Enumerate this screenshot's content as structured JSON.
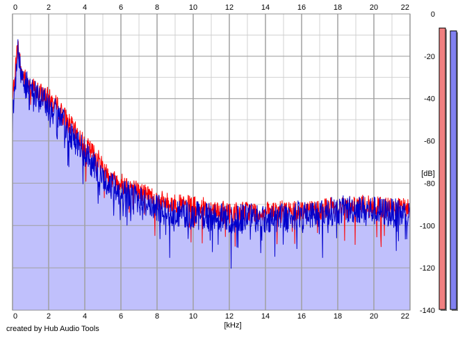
{
  "chart_data": {
    "type": "area",
    "title": "",
    "xlabel": "[kHz]",
    "ylabel": "[dB]",
    "xlim": [
      0,
      22
    ],
    "ylim": [
      -140,
      0
    ],
    "x_ticks": [
      "0",
      "2",
      "4",
      "6",
      "8",
      "10",
      "12",
      "14",
      "16",
      "18",
      "20",
      "22"
    ],
    "y_ticks": [
      "0",
      "-20",
      "-40",
      "-60",
      "-80",
      "-100",
      "-120",
      "-140"
    ],
    "grid": true,
    "colors": {
      "background": "#ffffff",
      "grid_major": "#a0a0a0",
      "grid_minor": "#d0d0d0",
      "fill": "#c0c0fc",
      "series_red": "#ff0000",
      "series_blue": "#0000cc",
      "meter_left": "#f08080",
      "meter_right": "#8080f0"
    },
    "series": [
      {
        "color": "#ff0000",
        "x": [
          0,
          0.1,
          0.2,
          0.3,
          0.5,
          0.8,
          1,
          1.3,
          1.6,
          1.8,
          2,
          2.5,
          3,
          3.5,
          4,
          4.5,
          5,
          5.5,
          6,
          6.5,
          7,
          7.5,
          8,
          9,
          10,
          11,
          12,
          13,
          14,
          15,
          16,
          17,
          18,
          19,
          20,
          21,
          22
        ],
        "y": [
          -42,
          -30,
          -22,
          -15,
          -28,
          -32,
          -34,
          -36,
          -38,
          -38,
          -40,
          -44,
          -50,
          -56,
          -62,
          -66,
          -72,
          -78,
          -80,
          -81,
          -84,
          -85,
          -88,
          -90,
          -91,
          -92,
          -94,
          -93,
          -94,
          -93,
          -93,
          -92,
          -91,
          -90,
          -91,
          -92,
          -92
        ]
      },
      {
        "color": "#0000cc",
        "x": [
          0,
          0.1,
          0.2,
          0.3,
          0.5,
          0.8,
          1,
          1.3,
          1.6,
          1.8,
          2,
          2.5,
          3,
          3.5,
          4,
          4.5,
          5,
          5.5,
          6,
          6.5,
          7,
          7.5,
          8,
          9,
          10,
          11,
          12,
          13,
          14,
          15,
          16,
          17,
          18,
          19,
          20,
          21,
          22
        ],
        "y": [
          -50,
          -35,
          -25,
          -18,
          -30,
          -34,
          -36,
          -38,
          -40,
          -41,
          -44,
          -48,
          -54,
          -60,
          -66,
          -72,
          -78,
          -82,
          -84,
          -86,
          -88,
          -90,
          -92,
          -94,
          -95,
          -96,
          -97,
          -96,
          -97,
          -96,
          -95,
          -94,
          -93,
          -92,
          -93,
          -94,
          -95
        ]
      }
    ]
  },
  "meters": {
    "left_level": 0.98,
    "right_level": 0.97
  },
  "footer": {
    "credit": "created by Hub Audio Tools"
  }
}
